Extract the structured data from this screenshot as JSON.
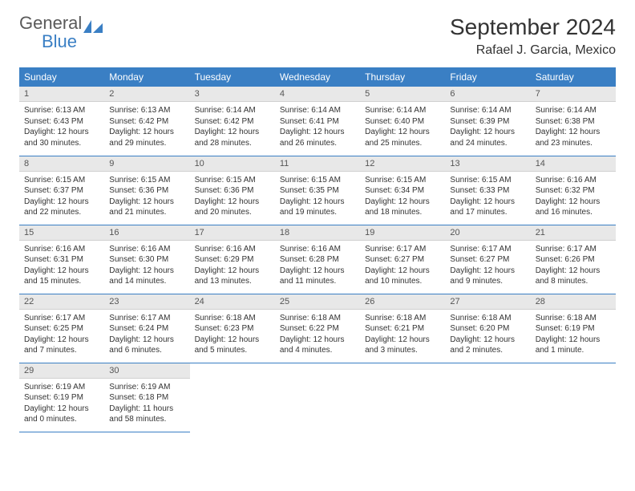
{
  "brand": {
    "general": "General",
    "blue": "Blue"
  },
  "header": {
    "month_title": "September 2024",
    "location": "Rafael J. Garcia, Mexico"
  },
  "colors": {
    "header_bg": "#3a7fc4",
    "header_text": "#ffffff",
    "daynum_bg": "#e8e8e8",
    "daynum_text": "#555555",
    "body_text": "#333333",
    "row_border": "#3a7fc4"
  },
  "weekdays": [
    "Sunday",
    "Monday",
    "Tuesday",
    "Wednesday",
    "Thursday",
    "Friday",
    "Saturday"
  ],
  "days": [
    {
      "n": 1,
      "sunrise": "6:13 AM",
      "sunset": "6:43 PM",
      "daylight": "12 hours and 30 minutes."
    },
    {
      "n": 2,
      "sunrise": "6:13 AM",
      "sunset": "6:42 PM",
      "daylight": "12 hours and 29 minutes."
    },
    {
      "n": 3,
      "sunrise": "6:14 AM",
      "sunset": "6:42 PM",
      "daylight": "12 hours and 28 minutes."
    },
    {
      "n": 4,
      "sunrise": "6:14 AM",
      "sunset": "6:41 PM",
      "daylight": "12 hours and 26 minutes."
    },
    {
      "n": 5,
      "sunrise": "6:14 AM",
      "sunset": "6:40 PM",
      "daylight": "12 hours and 25 minutes."
    },
    {
      "n": 6,
      "sunrise": "6:14 AM",
      "sunset": "6:39 PM",
      "daylight": "12 hours and 24 minutes."
    },
    {
      "n": 7,
      "sunrise": "6:14 AM",
      "sunset": "6:38 PM",
      "daylight": "12 hours and 23 minutes."
    },
    {
      "n": 8,
      "sunrise": "6:15 AM",
      "sunset": "6:37 PM",
      "daylight": "12 hours and 22 minutes."
    },
    {
      "n": 9,
      "sunrise": "6:15 AM",
      "sunset": "6:36 PM",
      "daylight": "12 hours and 21 minutes."
    },
    {
      "n": 10,
      "sunrise": "6:15 AM",
      "sunset": "6:36 PM",
      "daylight": "12 hours and 20 minutes."
    },
    {
      "n": 11,
      "sunrise": "6:15 AM",
      "sunset": "6:35 PM",
      "daylight": "12 hours and 19 minutes."
    },
    {
      "n": 12,
      "sunrise": "6:15 AM",
      "sunset": "6:34 PM",
      "daylight": "12 hours and 18 minutes."
    },
    {
      "n": 13,
      "sunrise": "6:15 AM",
      "sunset": "6:33 PM",
      "daylight": "12 hours and 17 minutes."
    },
    {
      "n": 14,
      "sunrise": "6:16 AM",
      "sunset": "6:32 PM",
      "daylight": "12 hours and 16 minutes."
    },
    {
      "n": 15,
      "sunrise": "6:16 AM",
      "sunset": "6:31 PM",
      "daylight": "12 hours and 15 minutes."
    },
    {
      "n": 16,
      "sunrise": "6:16 AM",
      "sunset": "6:30 PM",
      "daylight": "12 hours and 14 minutes."
    },
    {
      "n": 17,
      "sunrise": "6:16 AM",
      "sunset": "6:29 PM",
      "daylight": "12 hours and 13 minutes."
    },
    {
      "n": 18,
      "sunrise": "6:16 AM",
      "sunset": "6:28 PM",
      "daylight": "12 hours and 11 minutes."
    },
    {
      "n": 19,
      "sunrise": "6:17 AM",
      "sunset": "6:27 PM",
      "daylight": "12 hours and 10 minutes."
    },
    {
      "n": 20,
      "sunrise": "6:17 AM",
      "sunset": "6:27 PM",
      "daylight": "12 hours and 9 minutes."
    },
    {
      "n": 21,
      "sunrise": "6:17 AM",
      "sunset": "6:26 PM",
      "daylight": "12 hours and 8 minutes."
    },
    {
      "n": 22,
      "sunrise": "6:17 AM",
      "sunset": "6:25 PM",
      "daylight": "12 hours and 7 minutes."
    },
    {
      "n": 23,
      "sunrise": "6:17 AM",
      "sunset": "6:24 PM",
      "daylight": "12 hours and 6 minutes."
    },
    {
      "n": 24,
      "sunrise": "6:18 AM",
      "sunset": "6:23 PM",
      "daylight": "12 hours and 5 minutes."
    },
    {
      "n": 25,
      "sunrise": "6:18 AM",
      "sunset": "6:22 PM",
      "daylight": "12 hours and 4 minutes."
    },
    {
      "n": 26,
      "sunrise": "6:18 AM",
      "sunset": "6:21 PM",
      "daylight": "12 hours and 3 minutes."
    },
    {
      "n": 27,
      "sunrise": "6:18 AM",
      "sunset": "6:20 PM",
      "daylight": "12 hours and 2 minutes."
    },
    {
      "n": 28,
      "sunrise": "6:18 AM",
      "sunset": "6:19 PM",
      "daylight": "12 hours and 1 minute."
    },
    {
      "n": 29,
      "sunrise": "6:19 AM",
      "sunset": "6:19 PM",
      "daylight": "12 hours and 0 minutes."
    },
    {
      "n": 30,
      "sunrise": "6:19 AM",
      "sunset": "6:18 PM",
      "daylight": "11 hours and 58 minutes."
    }
  ],
  "labels": {
    "sunrise_prefix": "Sunrise: ",
    "sunset_prefix": "Sunset: ",
    "daylight_prefix": "Daylight: "
  },
  "layout": {
    "start_weekday": 0,
    "rows": 5,
    "cols": 7
  }
}
